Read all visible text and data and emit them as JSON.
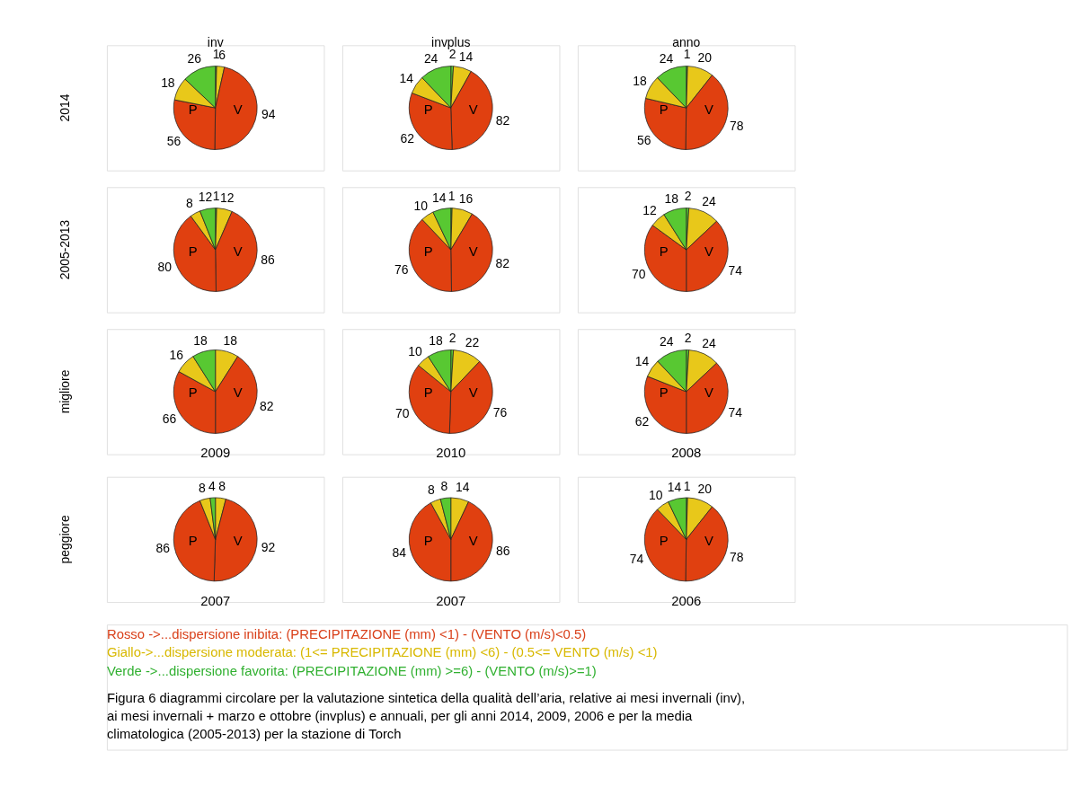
{
  "chart_data": [
    {
      "type": "pie",
      "title": "inv",
      "ylabel": "2014",
      "categories": [
        null,
        null,
        null,
        null,
        null,
        null
      ],
      "values": [
        1,
        6,
        94,
        56,
        18,
        26
      ],
      "colors": [
        "#58c832",
        "#e8c81a",
        "#e04010",
        "#e04010",
        "#e8c81a",
        "#58c832"
      ],
      "data_labels": true,
      "annotations": [
        "P",
        "V"
      ]
    },
    {
      "type": "pie",
      "title": "invplus",
      "categories": [
        null,
        null,
        null,
        null,
        null,
        null
      ],
      "values": [
        2,
        14,
        82,
        62,
        14,
        24
      ],
      "colors": [
        "#58c832",
        "#e8c81a",
        "#e04010",
        "#e04010",
        "#e8c81a",
        "#58c832"
      ],
      "data_labels": true,
      "annotations": [
        "P",
        "V"
      ]
    },
    {
      "type": "pie",
      "title": "anno",
      "categories": [
        null,
        null,
        null,
        null,
        null,
        null
      ],
      "values": [
        1,
        20,
        78,
        56,
        18,
        24
      ],
      "colors": [
        "#58c832",
        "#e8c81a",
        "#e04010",
        "#e04010",
        "#e8c81a",
        "#58c832"
      ],
      "data_labels": true,
      "annotations": [
        "P",
        "V"
      ]
    },
    {
      "type": "pie",
      "ylabel": "2005-2013",
      "categories": [
        null,
        null,
        null,
        null,
        null,
        null
      ],
      "values": [
        1,
        12,
        86,
        80,
        8,
        12
      ],
      "colors": [
        "#58c832",
        "#e8c81a",
        "#e04010",
        "#e04010",
        "#e8c81a",
        "#58c832"
      ],
      "data_labels": true,
      "annotations": [
        "P",
        "V"
      ]
    },
    {
      "type": "pie",
      "categories": [
        null,
        null,
        null,
        null,
        null,
        null
      ],
      "values": [
        1,
        16,
        82,
        76,
        10,
        14
      ],
      "colors": [
        "#58c832",
        "#e8c81a",
        "#e04010",
        "#e04010",
        "#e8c81a",
        "#58c832"
      ],
      "data_labels": true,
      "annotations": [
        "P",
        "V"
      ]
    },
    {
      "type": "pie",
      "categories": [
        null,
        null,
        null,
        null,
        null,
        null
      ],
      "values": [
        2,
        24,
        74,
        70,
        12,
        18
      ],
      "colors": [
        "#58c832",
        "#e8c81a",
        "#e04010",
        "#e04010",
        "#e8c81a",
        "#58c832"
      ],
      "data_labels": true,
      "annotations": [
        "P",
        "V"
      ]
    },
    {
      "type": "pie",
      "ylabel": "migliore",
      "categories": [
        null,
        null,
        null,
        null,
        null
      ],
      "values": [
        18,
        82,
        66,
        16,
        18
      ],
      "colors": [
        "#e8c81a",
        "#e04010",
        "#e04010",
        "#e8c81a",
        "#58c832"
      ],
      "data_labels": true,
      "annotations": [
        "P",
        "V",
        "2009"
      ]
    },
    {
      "type": "pie",
      "categories": [
        null,
        null,
        null,
        null,
        null,
        null
      ],
      "values": [
        2,
        22,
        76,
        70,
        10,
        18
      ],
      "colors": [
        "#58c832",
        "#e8c81a",
        "#e04010",
        "#e04010",
        "#e8c81a",
        "#58c832"
      ],
      "data_labels": true,
      "annotations": [
        "P",
        "V",
        "2010"
      ]
    },
    {
      "type": "pie",
      "categories": [
        null,
        null,
        null,
        null,
        null,
        null
      ],
      "values": [
        2,
        24,
        74,
        62,
        14,
        24
      ],
      "colors": [
        "#58c832",
        "#e8c81a",
        "#e04010",
        "#e04010",
        "#e8c81a",
        "#58c832"
      ],
      "data_labels": true,
      "annotations": [
        "P",
        "V",
        "2008"
      ]
    },
    {
      "type": "pie",
      "ylabel": "peggiore",
      "categories": [
        null,
        null,
        null,
        null,
        null
      ],
      "values": [
        8,
        92,
        86,
        8,
        4
      ],
      "colors": [
        "#e8c81a",
        "#e04010",
        "#e04010",
        "#e8c81a",
        "#58c832"
      ],
      "data_labels": true,
      "annotations": [
        "P",
        "V",
        "2007"
      ]
    },
    {
      "type": "pie",
      "categories": [
        null,
        null,
        null,
        null,
        null
      ],
      "values": [
        14,
        86,
        84,
        8,
        8
      ],
      "colors": [
        "#e8c81a",
        "#e04010",
        "#e04010",
        "#e8c81a",
        "#58c832"
      ],
      "data_labels": true,
      "annotations": [
        "P",
        "V",
        "2007"
      ]
    },
    {
      "type": "pie",
      "categories": [
        null,
        null,
        null,
        null,
        null,
        null
      ],
      "values": [
        1,
        20,
        78,
        74,
        10,
        14
      ],
      "colors": [
        "#58c832",
        "#e8c81a",
        "#e04010",
        "#e04010",
        "#e8c81a",
        "#58c832"
      ],
      "data_labels": true,
      "annotations": [
        "P",
        "V",
        "2006"
      ]
    },
    {
      "type": "other",
      "colors": [
        "#d9401a",
        "#d8b800",
        "#30b030",
        "#000000",
        "#000000",
        "#000000"
      ],
      "annotations": [
        "Rosso ->...dispersione  inibita: (PRECIPITAZIONE (mm) <1)  - (VENTO (m/s)<0.5)",
        "Giallo->...dispersione moderata:  (1<= PRECIPITAZIONE (mm) <6)  -  (0.5<= VENTO (m/s) <1)",
        "Verde ->...dispersione favorita: (PRECIPITAZIONE (mm) >=6)  - (VENTO (m/s)>=1)",
        "Figura 6 diagrammi circolare per la valutazione sintetica della qualità dell’aria, relative ai mesi invernali (inv),",
        "ai mesi invernali + marzo e ottobre (invplus) e annuali, per gli anni 2014, 2009, 2006 e per la media",
        "climatologica (2005-2013) per la stazione di Torch"
      ]
    }
  ]
}
